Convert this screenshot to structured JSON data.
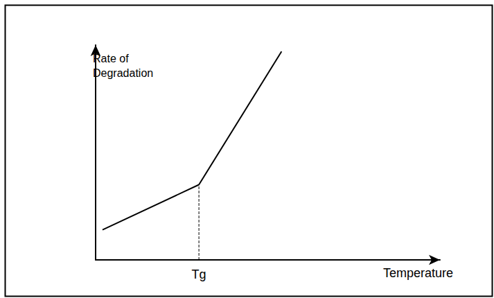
{
  "chart_data": {
    "type": "line",
    "x_label": "Temperature",
    "y_label": "Rate of\nDegradation",
    "x": [
      2,
      30,
      54
    ],
    "values": [
      14,
      35,
      97
    ],
    "color": "#000000",
    "xlim": [
      0,
      100
    ],
    "ylim": [
      0,
      100
    ],
    "xticks": [
      {
        "value": 30,
        "label": "Tg"
      }
    ],
    "yticks": [],
    "grid": false,
    "tick_labels": "x"
  }
}
